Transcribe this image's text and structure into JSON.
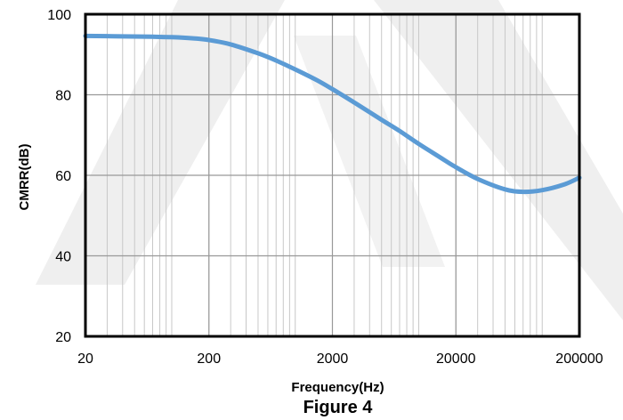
{
  "chart_data": {
    "type": "line",
    "caption": "Figure 4",
    "xlabel": "Frequency(Hz)",
    "ylabel": "CMRR(dB)",
    "x_scale": "log",
    "xlim": [
      20,
      200000
    ],
    "ylim": [
      20,
      100
    ],
    "x_ticks": [
      20,
      200,
      2000,
      20000,
      200000
    ],
    "x_tick_labels": [
      "20",
      "200",
      "2000",
      "20000",
      "200000"
    ],
    "y_ticks": [
      20,
      40,
      60,
      80,
      100
    ],
    "y_tick_labels": [
      "20",
      "40",
      "60",
      "80",
      "100"
    ],
    "grid": true,
    "colors": {
      "line": "#5b9bd5",
      "grid": "#c8c8c8",
      "frame": "#000000",
      "watermark": "#eeeeee"
    },
    "series": [
      {
        "x": [
          20,
          40,
          70,
          100,
          150,
          200,
          300,
          500,
          700,
          1000,
          1500,
          2000,
          3000,
          5000,
          7000,
          10000,
          15000,
          20000,
          30000,
          50000,
          70000,
          100000,
          150000,
          200000
        ],
        "y": [
          94.6,
          94.5,
          94.4,
          94.3,
          94.0,
          93.6,
          92.5,
          90.3,
          88.5,
          86.3,
          83.6,
          81.4,
          78.1,
          73.8,
          71.0,
          67.8,
          64.4,
          62.0,
          59.1,
          56.5,
          55.9,
          56.3,
          57.7,
          59.4
        ]
      }
    ]
  }
}
